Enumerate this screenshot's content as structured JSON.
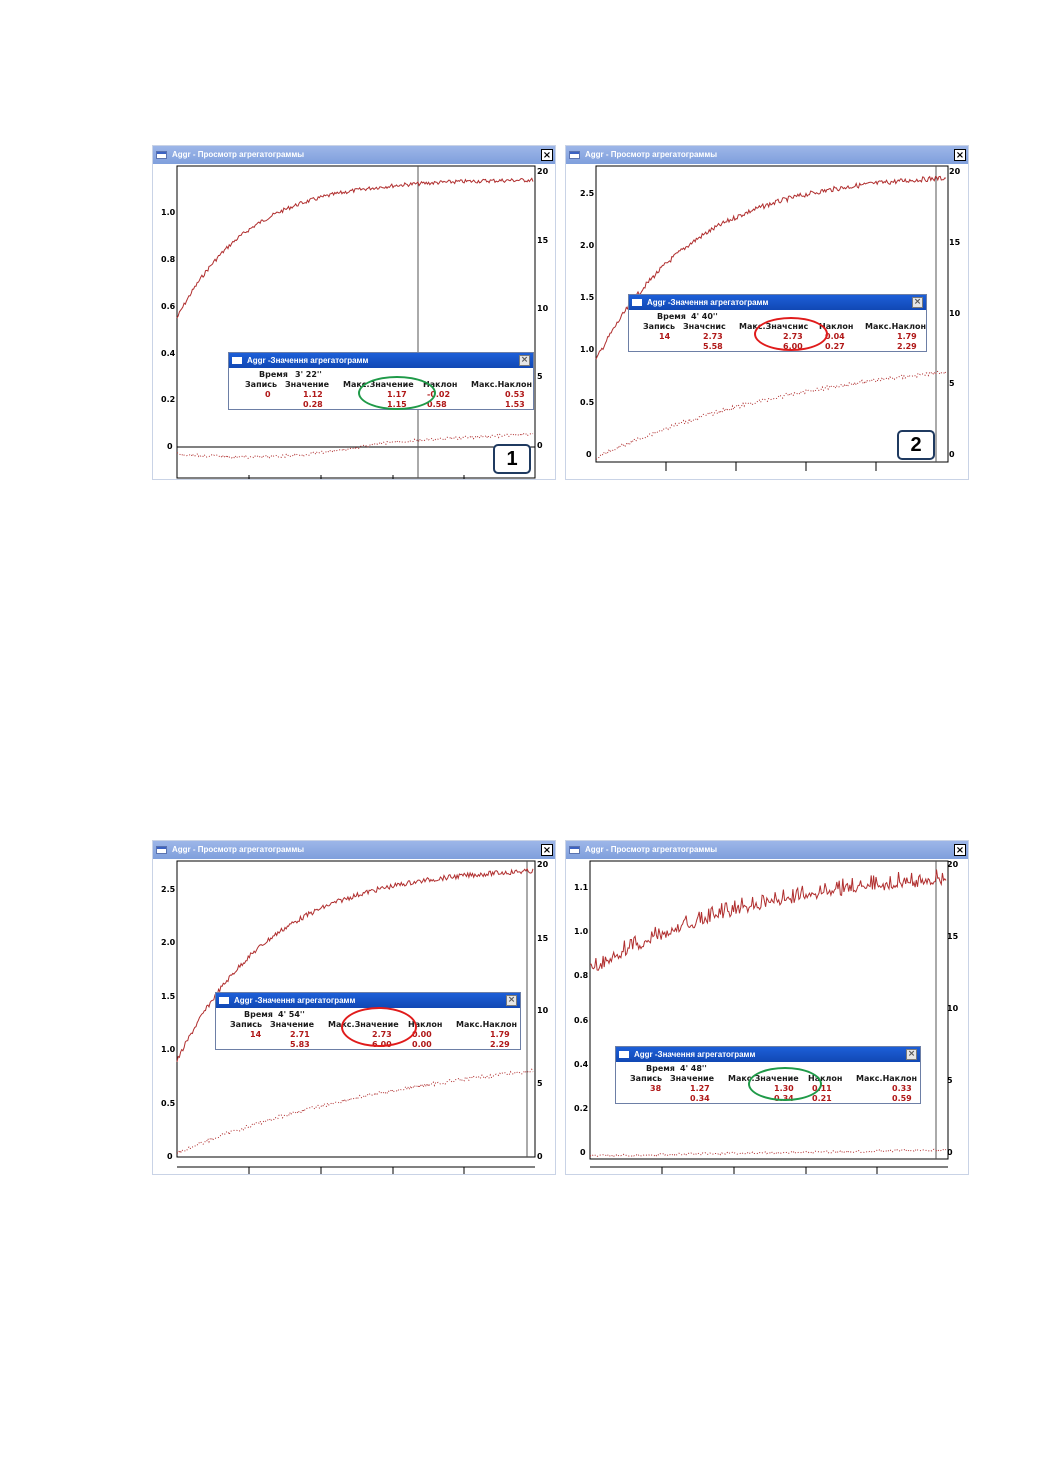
{
  "colors": {
    "curve": "#b02e2e",
    "dotted": "#b02e2e",
    "green_ellipse": "#1f9a48",
    "red_ellipse": "#e01b1b"
  },
  "windows": [
    {
      "title": "Aggr - Просмотр агрегатограммы",
      "close": "×",
      "y_left_ticks": [
        "1.0",
        "0.8",
        "0.6",
        "0.4",
        "0.2",
        "0"
      ],
      "y_right_ticks": [
        "20",
        "15",
        "10",
        "5",
        "0"
      ],
      "badge": "1",
      "dialog": {
        "title": "Aggr -Значення агрегатограмм",
        "close": "×",
        "time_label": "Время",
        "time_value": "3' 22''",
        "headers": [
          "Запись",
          "Значение",
          "Макс.Значение",
          "Наклон",
          "Макс.Наклон"
        ],
        "row1": [
          "0",
          "1.12",
          "1.17",
          "-0.02",
          "0.53"
        ],
        "row2": [
          "",
          "0.28",
          "1.15",
          "0.58",
          "1.53"
        ]
      },
      "highlight": "green"
    },
    {
      "title": "Aggr - Просмотр агрегатограммы",
      "close": "×",
      "y_left_ticks": [
        "2.5",
        "2.0",
        "1.5",
        "1.0",
        "0.5",
        "0"
      ],
      "y_right_ticks": [
        "20",
        "15",
        "10",
        "5",
        "0"
      ],
      "badge": "2",
      "dialog": {
        "title": "Aggr -Значення агрегатограмм",
        "close": "×",
        "time_label": "Время",
        "time_value": "4' 40''",
        "headers": [
          "Запись",
          "Значснис",
          "Макс.Значснис",
          "Наклон",
          "Макс.Наклон"
        ],
        "row1": [
          "14",
          "2.73",
          "2.73",
          "0.04",
          "1.79"
        ],
        "row2": [
          "",
          "5.58",
          "6.00",
          "0.27",
          "2.29"
        ]
      },
      "highlight": "red"
    },
    {
      "title": "Aggr - Просмотр агрегатограммы",
      "close": "×",
      "y_left_ticks": [
        "2.5",
        "2.0",
        "1.5",
        "1.0",
        "0.5",
        "0"
      ],
      "y_right_ticks": [
        "20",
        "15",
        "10",
        "5",
        "0"
      ],
      "badge": "",
      "dialog": {
        "title": "Aggr -Значення агрегатограмм",
        "close": "×",
        "time_label": "Время",
        "time_value": "4' 54''",
        "headers": [
          "Запись",
          "Значение",
          "Макс.Значение",
          "Наклон",
          "Макс.Наклон"
        ],
        "row1": [
          "14",
          "2.71",
          "2.73",
          "0.00",
          "1.79"
        ],
        "row2": [
          "",
          "5.83",
          "6.00",
          "0.00",
          "2.29"
        ]
      },
      "highlight": "red"
    },
    {
      "title": "Aggr - Просмотр агрегатограммы",
      "close": "×",
      "y_left_ticks": [
        "1.1",
        "1.0",
        "0.8",
        "0.6",
        "0.4",
        "0.2",
        "0"
      ],
      "y_right_ticks": [
        "20",
        "15",
        "10",
        "5",
        "0"
      ],
      "badge": "",
      "dialog": {
        "title": "Aggr -Значення агрегатограмм",
        "close": "×",
        "time_label": "Время",
        "time_value": "4' 48''",
        "headers": [
          "Запись",
          "Значение",
          "Макс.Значение",
          "Наклон",
          "Макс.Наклон"
        ],
        "row1": [
          "38",
          "1.27",
          "1.30",
          "0.11",
          "0.33"
        ],
        "row2": [
          "",
          "0.34",
          "0.34",
          "0.21",
          "0.59"
        ]
      },
      "highlight": "green"
    }
  ]
}
